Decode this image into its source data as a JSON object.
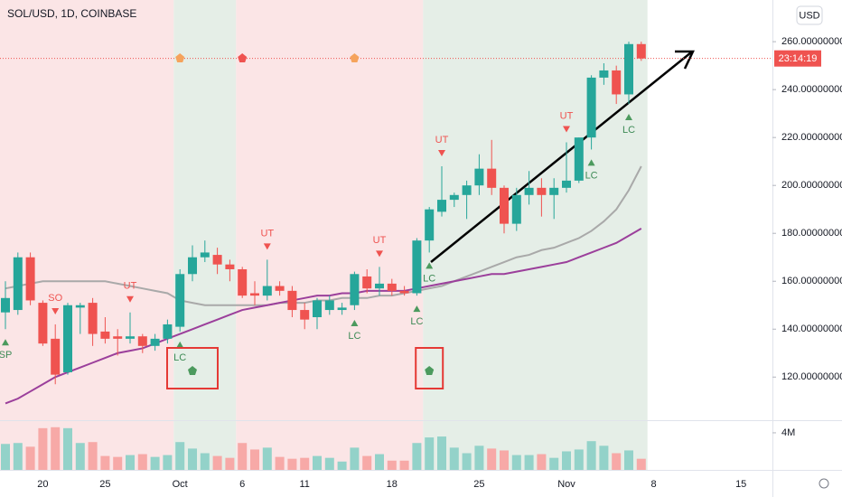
{
  "chart_data": {
    "type": "candlestick",
    "title": "SOL/USD, 1D, COINBASE",
    "currency_button": "USD",
    "countdown": "23:14:19",
    "categories": [
      null,
      null,
      null,
      "20",
      null,
      null,
      null,
      null,
      "25",
      null,
      null,
      null,
      null,
      null,
      "Oct",
      null,
      null,
      null,
      null,
      "6",
      null,
      null,
      null,
      null,
      "11",
      null,
      null,
      null,
      null,
      null,
      null,
      "18",
      null,
      null,
      null,
      null,
      null,
      null,
      "25",
      null,
      null,
      null,
      null,
      null,
      null,
      "Nov",
      null,
      null,
      null,
      null,
      null,
      null,
      "8",
      null,
      null,
      null,
      null,
      null,
      null,
      "15",
      null,
      null
    ],
    "open": [
      147,
      148,
      170,
      151,
      136,
      122,
      149,
      151,
      139,
      137,
      136,
      137,
      133,
      136,
      141,
      163,
      170,
      171,
      167,
      165,
      155,
      154,
      158,
      156,
      148,
      145,
      148,
      148,
      150,
      162,
      157,
      159,
      156,
      155,
      177,
      189,
      194,
      196,
      200,
      207,
      199,
      184,
      196,
      199,
      196,
      199,
      202,
      220,
      245,
      248,
      238,
      259,
      null,
      null,
      null,
      null,
      null,
      null,
      null,
      null,
      null,
      null
    ],
    "high": [
      160,
      172,
      172,
      152,
      142,
      151,
      151,
      153,
      145,
      140,
      147,
      138,
      138,
      144,
      165,
      175,
      177,
      174,
      169,
      166,
      160,
      169,
      160,
      158,
      151,
      153,
      154,
      151,
      164,
      165,
      166,
      161,
      158,
      178,
      191,
      208,
      197,
      202,
      213,
      219,
      200,
      199,
      206,
      203,
      203,
      218,
      220,
      246,
      251,
      250,
      260,
      260,
      null,
      null,
      null,
      null,
      null,
      null,
      null,
      null,
      null,
      null
    ],
    "low": [
      140,
      146,
      150,
      133,
      117,
      121,
      138,
      133,
      134,
      129,
      134,
      130,
      131,
      134,
      139,
      160,
      168,
      163,
      160,
      153,
      150,
      152,
      154,
      145,
      140,
      140,
      146,
      146,
      148,
      155,
      154,
      154,
      154,
      154,
      172,
      187,
      191,
      186,
      196,
      196,
      180,
      181,
      192,
      187,
      186,
      197,
      201,
      215,
      242,
      234,
      234,
      252,
      null,
      null,
      null,
      null,
      null,
      null,
      null,
      null,
      null,
      null
    ],
    "close": [
      153,
      170,
      152,
      134,
      121,
      150,
      150,
      138,
      136,
      136,
      137,
      133,
      136,
      142,
      163,
      170,
      172,
      167,
      165,
      154,
      154,
      158,
      156,
      148,
      144,
      152,
      152,
      149,
      163,
      157,
      159,
      156,
      155,
      177,
      190,
      194,
      196,
      200,
      207,
      199,
      184,
      196,
      199,
      196,
      199,
      202,
      220,
      245,
      248,
      238,
      259,
      253,
      null,
      null,
      null,
      null,
      null,
      null,
      null,
      null,
      null,
      null
    ],
    "volume": [
      2800000,
      2900000,
      2500000,
      4500000,
      4600000,
      4500000,
      2900000,
      3000000,
      1500000,
      1400000,
      1600000,
      1700000,
      1400000,
      1600000,
      3000000,
      2300000,
      1800000,
      1500000,
      1300000,
      2900000,
      2200000,
      2400000,
      1400000,
      1200000,
      1300000,
      1500000,
      1300000,
      900000,
      2400000,
      1500000,
      1700000,
      1000000,
      1000000,
      2900000,
      3500000,
      3600000,
      2400000,
      1800000,
      2600000,
      2300000,
      2100000,
      1600000,
      1600000,
      1700000,
      1300000,
      2000000,
      2200000,
      3100000,
      2600000,
      1800000,
      2100000,
      1200000,
      null,
      null,
      null,
      null,
      null,
      null,
      null,
      null,
      null,
      null
    ],
    "overlays": [
      {
        "color": "#a9a9a9",
        "values": [
          157,
          158,
          159,
          160,
          160,
          160,
          160,
          160,
          160,
          159,
          158,
          157,
          156,
          155,
          152,
          151,
          150,
          150,
          150,
          150,
          150,
          150,
          151,
          151,
          151,
          152,
          152,
          153,
          153,
          153,
          154,
          154,
          155,
          156,
          157,
          158,
          160,
          162,
          164,
          166,
          168,
          170,
          171,
          173,
          174,
          176,
          178,
          181,
          185,
          190,
          198,
          208,
          null,
          null,
          null,
          null,
          null,
          null,
          null,
          null,
          null,
          null
        ]
      },
      {
        "color": "#9b3f9b",
        "values": [
          109,
          111,
          114,
          117,
          120,
          122,
          124,
          126,
          128,
          130,
          131,
          132,
          134,
          136,
          138,
          140,
          142,
          144,
          146,
          148,
          149,
          150,
          151,
          152,
          153,
          154,
          154,
          155,
          155,
          156,
          156,
          156,
          156,
          157,
          158,
          159,
          160,
          161,
          162,
          163,
          163,
          164,
          165,
          166,
          167,
          168,
          170,
          172,
          174,
          176,
          179,
          182,
          null,
          null,
          null,
          null,
          null,
          null,
          null,
          null,
          null,
          null
        ]
      }
    ],
    "up_color": "#26a69a",
    "down_color": "#ef5350",
    "zones": [
      {
        "start": 0,
        "end": 14,
        "color": "#fbe5e6"
      },
      {
        "start": 14,
        "end": 19,
        "color": "#e5eee7"
      },
      {
        "start": 19,
        "end": 34,
        "color": "#fbe5e6"
      },
      {
        "start": 34,
        "end": 52,
        "color": "#e5eee7"
      }
    ],
    "annotations": [
      {
        "index": 0,
        "label": "SP",
        "position": "below"
      },
      {
        "index": 4,
        "label": "SO",
        "position": "above"
      },
      {
        "index": 10,
        "label": "UT",
        "position": "above"
      },
      {
        "index": 14,
        "label": "LC",
        "position": "below"
      },
      {
        "index": 21,
        "label": "UT",
        "position": "above"
      },
      {
        "index": 28,
        "label": "LC",
        "position": "below"
      },
      {
        "index": 30,
        "label": "UT",
        "position": "above"
      },
      {
        "index": 33,
        "label": "LC",
        "position": "below"
      },
      {
        "index": 34,
        "label": "LC",
        "position": "below"
      },
      {
        "index": 35,
        "label": "UT",
        "position": "above"
      },
      {
        "index": 45,
        "label": "UT",
        "position": "above"
      },
      {
        "index": 47,
        "label": "LC",
        "position": "below"
      },
      {
        "index": 50,
        "label": "LC",
        "position": "below"
      }
    ],
    "top_markers": [
      {
        "index": 14,
        "color": "#f5a35c"
      },
      {
        "index": 19,
        "color": "#ef5350"
      },
      {
        "index": 28,
        "color": "#f5a35c"
      }
    ],
    "boxed_markers": [
      {
        "index": 15,
        "color": "#4c9a5e"
      },
      {
        "index": 34,
        "color": "#4c9a5e"
      }
    ],
    "ylim": [
      102,
      277.4
    ],
    "yticks": [
      {
        "value": 120,
        "label": "120.00000000"
      },
      {
        "value": 140,
        "label": "140.00000000"
      },
      {
        "value": 160,
        "label": "160.00000000"
      },
      {
        "value": 180,
        "label": "180.00000000"
      },
      {
        "value": 200,
        "label": "200.00000000"
      },
      {
        "value": 220,
        "label": "220.00000000"
      },
      {
        "value": 240,
        "label": "240.00000000"
      },
      {
        "value": 260,
        "label": "260.00000000"
      }
    ],
    "y2lim": [
      0,
      5360000
    ],
    "y2ticks": [
      {
        "value": 4000000,
        "label": "4M"
      }
    ]
  }
}
